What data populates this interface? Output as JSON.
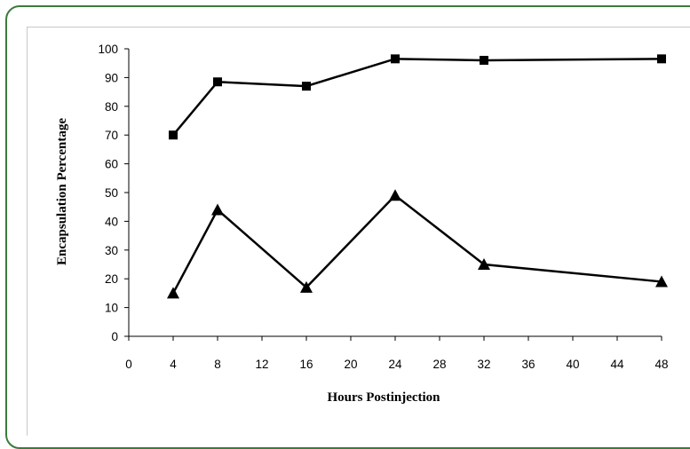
{
  "chart_data": {
    "type": "line",
    "title": "",
    "xlabel": "Hours Postinjection",
    "ylabel": "Encapsulation Percentage",
    "xlim": [
      0,
      48
    ],
    "ylim": [
      0,
      100
    ],
    "xticks": [
      0,
      4,
      8,
      12,
      16,
      20,
      24,
      28,
      32,
      36,
      40,
      44,
      48
    ],
    "yticks": [
      0,
      10,
      20,
      30,
      40,
      50,
      60,
      70,
      80,
      90,
      100
    ],
    "grid": false,
    "legend": "none",
    "series": [
      {
        "marker": "square",
        "color": "#000000",
        "x": [
          4,
          8,
          16,
          24,
          32,
          48
        ],
        "y": [
          70,
          88.5,
          87,
          96.5,
          96,
          96.5
        ]
      },
      {
        "marker": "triangle",
        "color": "#000000",
        "x": [
          4,
          8,
          16,
          24,
          32,
          48
        ],
        "y": [
          15,
          44,
          17,
          49,
          25,
          19
        ]
      }
    ]
  }
}
